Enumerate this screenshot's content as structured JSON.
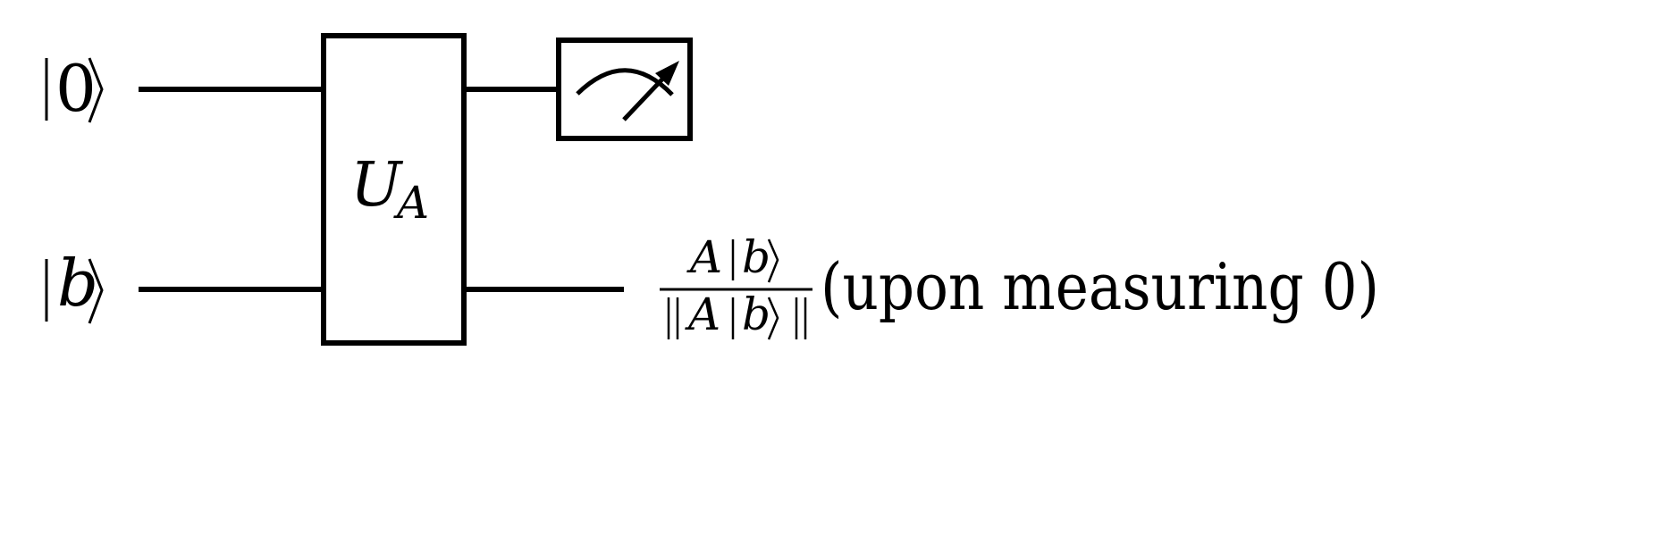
{
  "inputs": {
    "top": {
      "ket": "0"
    },
    "bottom": {
      "ket": "b"
    }
  },
  "gate": {
    "symbol": "U",
    "subscript": "A"
  },
  "output": {
    "numerator_A": "A",
    "numerator_ket": "b",
    "denominator_A": "A",
    "denominator_ket": "b",
    "note": "(upon measuring 0)"
  },
  "colors": {
    "ink": "#000000",
    "background": "#ffffff"
  },
  "icons": [
    "meter-icon"
  ]
}
